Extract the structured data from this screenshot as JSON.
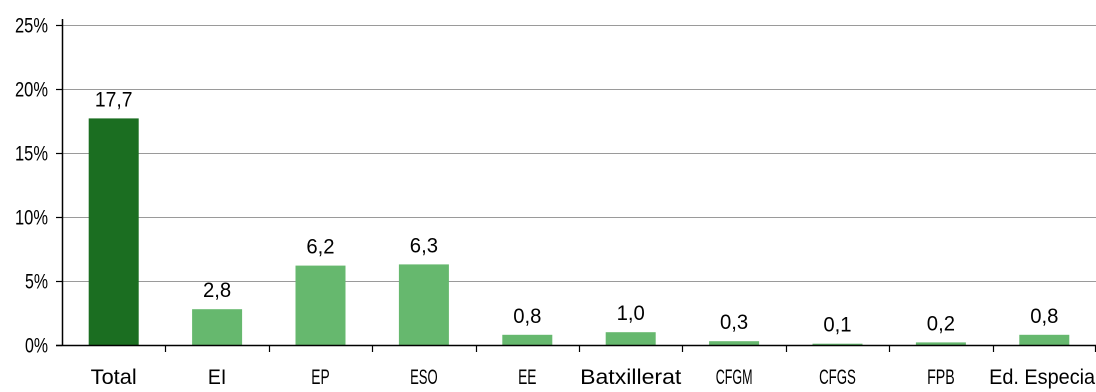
{
  "chart_data": {
    "type": "bar",
    "title": "",
    "xlabel": "",
    "ylabel": "",
    "categories": [
      "Total",
      "EI",
      "EP",
      "ESO",
      "EE",
      "Batxillerat",
      "CFGM",
      "CFGS",
      "FPB",
      "Ed. Especial"
    ],
    "values": [
      17.7,
      2.8,
      6.2,
      6.3,
      0.8,
      1.0,
      0.3,
      0.1,
      0.2,
      0.8
    ],
    "data_labels": [
      "17,7",
      "2,8",
      "6,2",
      "6,3",
      "0,8",
      "1,0",
      "0,3",
      "0,1",
      "0,2",
      "0,8"
    ],
    "ylim": [
      0,
      25
    ],
    "yticks": [
      0,
      5,
      10,
      15,
      20,
      25
    ],
    "ytick_labels": [
      "0%",
      "5%",
      "10%",
      "15%",
      "20%",
      "25%"
    ],
    "grid": true,
    "legend": "none",
    "colors": {
      "highlight": "#1b6e21",
      "bar": "#66b86e",
      "grid": "#9a9a9a",
      "axis": "#000000"
    }
  }
}
